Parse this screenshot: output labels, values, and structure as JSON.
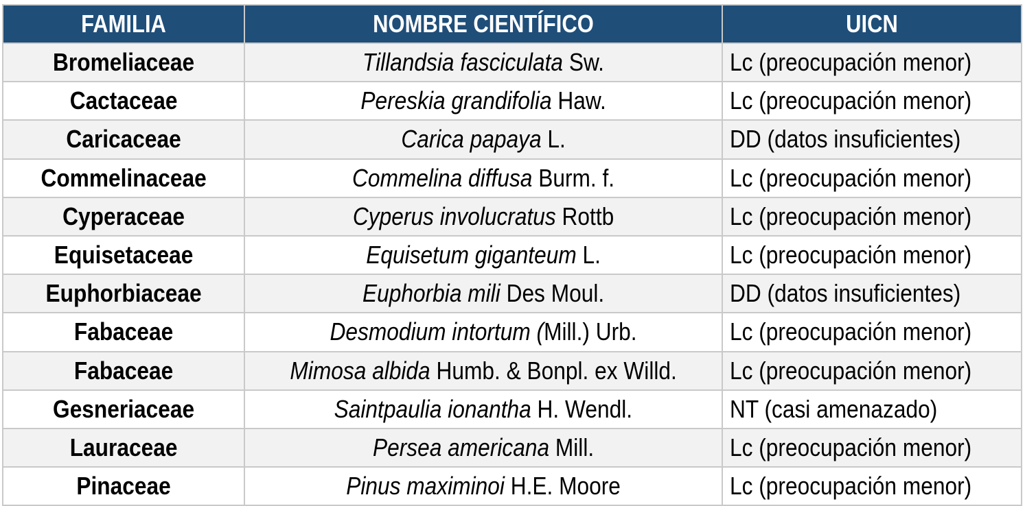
{
  "table": {
    "headers": {
      "familia": "FAMILIA",
      "nombre": "NOMBRE CIENTÍFICO",
      "uicn": "UICN"
    },
    "rows": [
      {
        "familia": "Bromeliaceae",
        "nombre_italic": "Tillandsia fasciculata",
        "nombre_author": " Sw.",
        "uicn": "Lc (preocupación menor)"
      },
      {
        "familia": "Cactaceae",
        "nombre_italic": "Pereskia grandifolia",
        "nombre_author": " Haw.",
        "uicn": "Lc (preocupación menor)"
      },
      {
        "familia": "Caricaceae",
        "nombre_italic": "Carica papaya",
        "nombre_author": " L.",
        "uicn": "DD (datos insuficientes)"
      },
      {
        "familia": "Commelinaceae",
        "nombre_italic": "Commelina diffusa",
        "nombre_author": " Burm. f.",
        "uicn": "Lc (preocupación menor)"
      },
      {
        "familia": "Cyperaceae",
        "nombre_italic": "Cyperus involucratus",
        "nombre_author": " Rottb",
        "uicn": "Lc (preocupación menor)"
      },
      {
        "familia": "Equisetaceae",
        "nombre_italic": "Equisetum giganteum",
        "nombre_author": " L.",
        "uicn": "Lc (preocupación menor)"
      },
      {
        "familia": "Euphorbiaceae",
        "nombre_italic": "Euphorbia mili",
        "nombre_author": " Des Moul.",
        "uicn": "DD (datos insuficientes)"
      },
      {
        "familia": "Fabaceae",
        "nombre_italic": "Desmodium intortum (",
        "nombre_author": "Mill.) Urb.",
        "uicn": "Lc (preocupación menor)"
      },
      {
        "familia": "Fabaceae",
        "nombre_italic": "Mimosa albida",
        "nombre_author": " Humb. & Bonpl. ex Willd.",
        "uicn": "Lc (preocupación menor)"
      },
      {
        "familia": "Gesneriaceae",
        "nombre_italic": "Saintpaulia ionantha",
        "nombre_author": " H. Wendl.",
        "uicn": "NT (casi amenazado)"
      },
      {
        "familia": "Lauraceae",
        "nombre_italic": "Persea americana",
        "nombre_author": " Mill.",
        "uicn": "Lc (preocupación menor)"
      },
      {
        "familia": "Pinaceae",
        "nombre_italic": "Pinus maximinoi",
        "nombre_author": " H.E. Moore",
        "uicn": "Lc (preocupación menor)"
      }
    ]
  },
  "colors": {
    "header_bg": "#1f4e79",
    "header_text": "#ffffff",
    "row_alt_bg": "#f2f2f2",
    "border": "#c9c9c9"
  }
}
